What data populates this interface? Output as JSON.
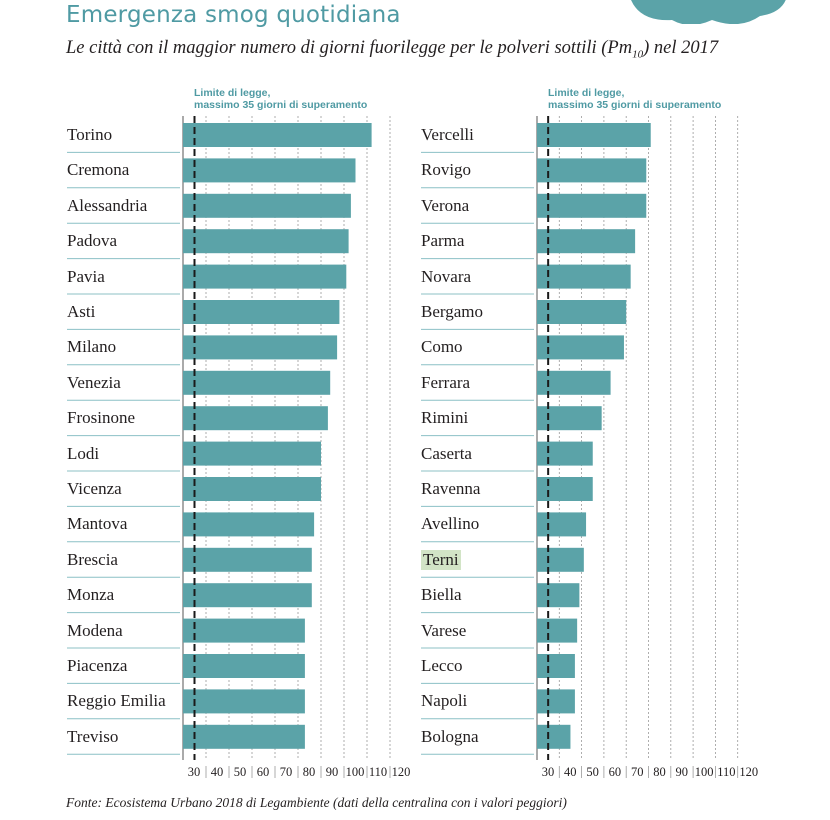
{
  "title": "Emergenza smog quotidiana",
  "subtitle_main": "Le città con il maggior numero di giorni fuorilegge per le polveri sottili (Pm",
  "subtitle_sub": "10",
  "subtitle_end": ") nel 2017",
  "source": "Fonte: Ecosistema Urbano 2018 di Legambiente (dati della centralina con i valori peggiori)",
  "colors": {
    "bar": "#5ba3a8",
    "accent": "#4f9aa3",
    "highlight": "#d2e4c6",
    "line": "#8cc0c6"
  },
  "chart_data": [
    {
      "type": "bar",
      "orientation": "horizontal",
      "limit_label_line1": "Limite di legge,",
      "limit_label_line2": "massimo 35 giorni di superamento",
      "limit_value": 35,
      "xlim": [
        30,
        120
      ],
      "ticks": [
        "30",
        "40",
        "50",
        "60",
        "70",
        "80",
        "90",
        "100",
        "110",
        "120"
      ],
      "grid": true,
      "categories": [
        "Torino",
        "Cremona",
        "Alessandria",
        "Padova",
        "Pavia",
        "Asti",
        "Milano",
        "Venezia",
        "Frosinone",
        "Lodi",
        "Vicenza",
        "Mantova",
        "Brescia",
        "Monza",
        "Modena",
        "Piacenza",
        "Reggio Emilia",
        "Treviso"
      ],
      "values": [
        112,
        105,
        103,
        102,
        101,
        98,
        97,
        94,
        93,
        90,
        90,
        87,
        86,
        86,
        83,
        83,
        83,
        83
      ]
    },
    {
      "type": "bar",
      "orientation": "horizontal",
      "limit_label_line1": "Limite di legge,",
      "limit_label_line2": "massimo 35 giorni di superamento",
      "limit_value": 35,
      "xlim": [
        30,
        120
      ],
      "ticks": [
        "30",
        "40",
        "50",
        "60",
        "70",
        "80",
        "90",
        "100",
        "110",
        "120"
      ],
      "grid": true,
      "categories": [
        "Vercelli",
        "Rovigo",
        "Verona",
        "Parma",
        "Novara",
        "Bergamo",
        "Como",
        "Ferrara",
        "Rimini",
        "Caserta",
        "Ravenna",
        "Avellino",
        "Terni",
        "Biella",
        "Varese",
        "Lecco",
        "Napoli",
        "Bologna"
      ],
      "values": [
        81,
        79,
        79,
        74,
        72,
        70,
        69,
        63,
        59,
        55,
        55,
        52,
        51,
        49,
        48,
        47,
        47,
        45
      ],
      "highlighted": [
        "Terni"
      ]
    }
  ]
}
